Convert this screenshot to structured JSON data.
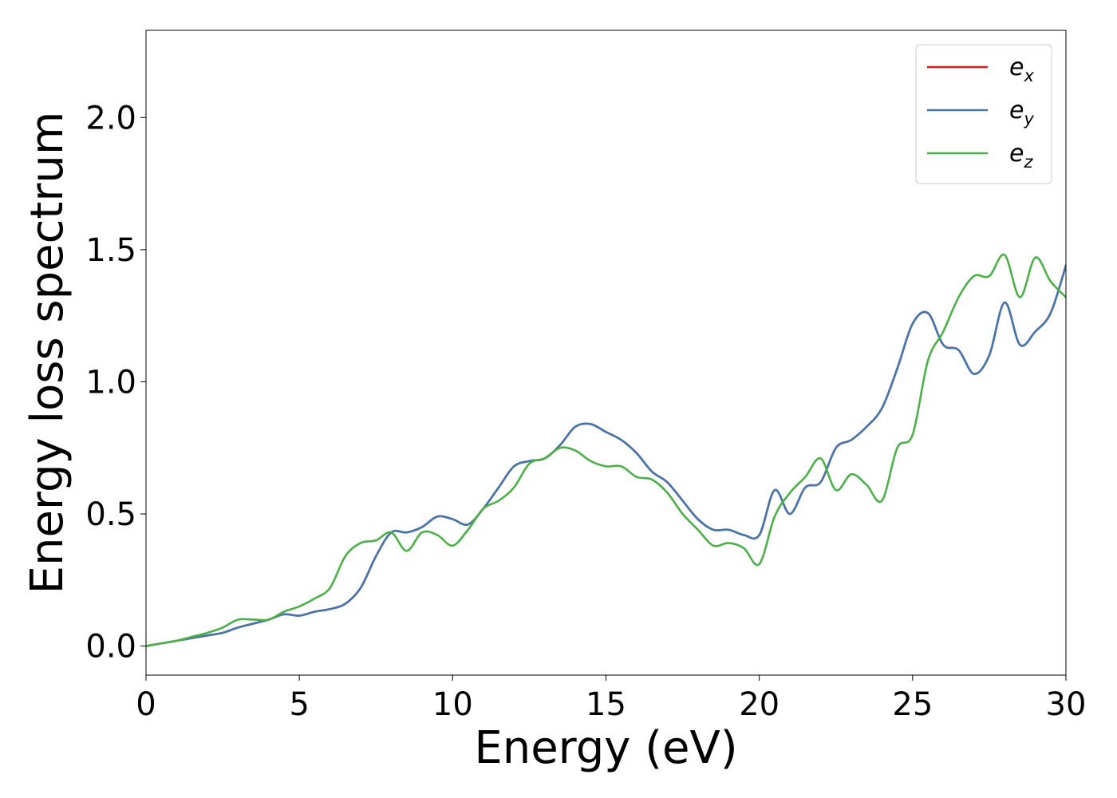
{
  "chart_data": {
    "type": "line",
    "title": "",
    "xlabel": "Energy (eV)",
    "ylabel": "Energy loss spectrum",
    "xlim": [
      0,
      30
    ],
    "ylim": [
      -0.11,
      2.33
    ],
    "xticks": [
      "0",
      "5",
      "10",
      "15",
      "20",
      "25",
      "30"
    ],
    "yticks": [
      "0.0",
      "0.5",
      "1.0",
      "1.5",
      "2.0"
    ],
    "grid": false,
    "legend_position": "top-right",
    "series": [
      {
        "name": "e_x",
        "legend": {
          "base": "e",
          "sub": "x"
        },
        "color": "#e41a1c",
        "x": [
          0,
          0.5,
          1,
          1.5,
          2,
          2.5,
          3,
          3.5,
          4,
          4.5,
          5,
          5.5,
          6,
          6.5,
          7,
          7.5,
          8,
          8.5,
          9,
          9.5,
          10,
          10.5,
          11,
          11.5,
          12,
          12.5,
          13,
          13.5,
          14,
          14.5,
          15,
          15.5,
          16,
          16.5,
          17,
          17.5,
          18,
          18.5,
          19,
          19.5,
          20,
          20.5,
          21,
          21.5,
          22,
          22.5,
          23,
          23.5,
          24,
          24.5,
          25,
          25.5,
          26,
          26.5,
          27,
          27.5,
          28,
          28.5,
          29,
          29.5,
          30
        ],
        "y": [
          0,
          0.01,
          0.02,
          0.03,
          0.04,
          0.05,
          0.07,
          0.085,
          0.1,
          0.12,
          0.115,
          0.13,
          0.14,
          0.16,
          0.22,
          0.34,
          0.43,
          0.43,
          0.45,
          0.49,
          0.48,
          0.46,
          0.52,
          0.6,
          0.68,
          0.7,
          0.71,
          0.76,
          0.83,
          0.84,
          0.81,
          0.78,
          0.73,
          0.66,
          0.62,
          0.55,
          0.48,
          0.44,
          0.44,
          0.42,
          0.42,
          0.59,
          0.5,
          0.6,
          0.62,
          0.75,
          0.78,
          0.83,
          0.9,
          1.05,
          1.22,
          1.26,
          1.14,
          1.12,
          1.03,
          1.1,
          1.3,
          1.14,
          1.19,
          1.26,
          1.44
        ]
      },
      {
        "name": "e_y",
        "legend": {
          "base": "e",
          "sub": "y"
        },
        "color": "#4477aa",
        "x": [
          0,
          0.5,
          1,
          1.5,
          2,
          2.5,
          3,
          3.5,
          4,
          4.5,
          5,
          5.5,
          6,
          6.5,
          7,
          7.5,
          8,
          8.5,
          9,
          9.5,
          10,
          10.5,
          11,
          11.5,
          12,
          12.5,
          13,
          13.5,
          14,
          14.5,
          15,
          15.5,
          16,
          16.5,
          17,
          17.5,
          18,
          18.5,
          19,
          19.5,
          20,
          20.5,
          21,
          21.5,
          22,
          22.5,
          23,
          23.5,
          24,
          24.5,
          25,
          25.5,
          26,
          26.5,
          27,
          27.5,
          28,
          28.5,
          29,
          29.5,
          30
        ],
        "y": [
          0,
          0.01,
          0.02,
          0.03,
          0.04,
          0.05,
          0.07,
          0.085,
          0.1,
          0.12,
          0.115,
          0.13,
          0.14,
          0.16,
          0.22,
          0.34,
          0.43,
          0.43,
          0.45,
          0.49,
          0.48,
          0.46,
          0.52,
          0.6,
          0.68,
          0.7,
          0.71,
          0.76,
          0.83,
          0.84,
          0.81,
          0.78,
          0.73,
          0.66,
          0.62,
          0.55,
          0.48,
          0.44,
          0.44,
          0.42,
          0.42,
          0.59,
          0.5,
          0.6,
          0.62,
          0.75,
          0.78,
          0.83,
          0.9,
          1.05,
          1.22,
          1.26,
          1.14,
          1.12,
          1.03,
          1.1,
          1.3,
          1.14,
          1.19,
          1.26,
          1.44
        ]
      },
      {
        "name": "e_z",
        "legend": {
          "base": "e",
          "sub": "z"
        },
        "color": "#4daf4a",
        "x": [
          0,
          0.5,
          1,
          1.5,
          2,
          2.5,
          3,
          3.5,
          4,
          4.5,
          5,
          5.5,
          6,
          6.5,
          7,
          7.5,
          8,
          8.5,
          9,
          9.5,
          10,
          10.5,
          11,
          11.5,
          12,
          12.5,
          13,
          13.5,
          14,
          14.5,
          15,
          15.5,
          16,
          16.5,
          17,
          17.5,
          18,
          18.5,
          19,
          19.5,
          20,
          20.5,
          21,
          21.5,
          22,
          22.5,
          23,
          23.5,
          24,
          24.5,
          25,
          25.5,
          26,
          26.5,
          27,
          27.5,
          28,
          28.5,
          29,
          29.5,
          30
        ],
        "y": [
          0,
          0.01,
          0.02,
          0.035,
          0.05,
          0.07,
          0.1,
          0.1,
          0.1,
          0.13,
          0.15,
          0.18,
          0.22,
          0.34,
          0.39,
          0.4,
          0.43,
          0.36,
          0.43,
          0.42,
          0.38,
          0.44,
          0.52,
          0.55,
          0.6,
          0.69,
          0.71,
          0.75,
          0.74,
          0.7,
          0.68,
          0.68,
          0.64,
          0.63,
          0.58,
          0.5,
          0.44,
          0.38,
          0.39,
          0.37,
          0.31,
          0.49,
          0.58,
          0.64,
          0.71,
          0.59,
          0.65,
          0.61,
          0.55,
          0.75,
          0.8,
          1.08,
          1.19,
          1.32,
          1.4,
          1.4,
          1.48,
          1.32,
          1.47,
          1.38,
          1.32
        ]
      }
    ]
  }
}
